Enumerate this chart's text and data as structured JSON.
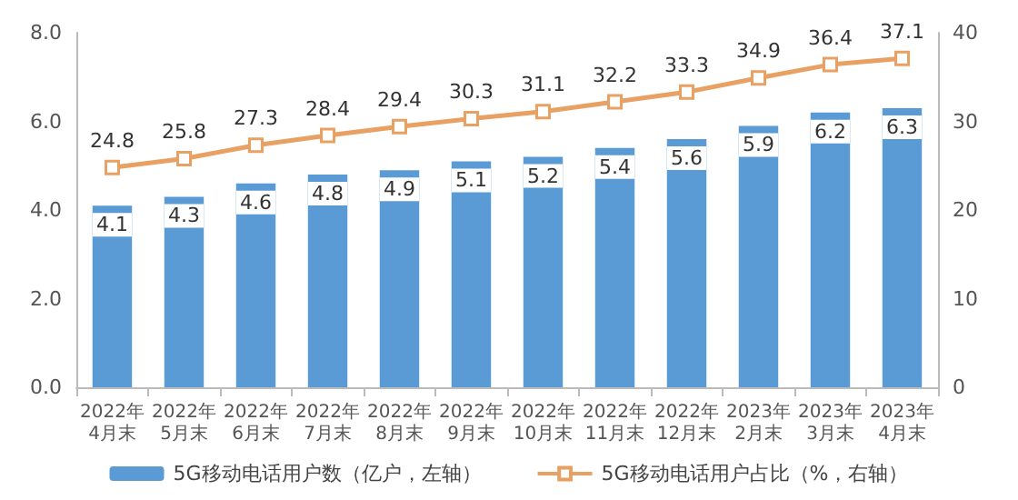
{
  "chart_data": {
    "type": "bar",
    "categories": [
      "2022年\n4月末",
      "2022年\n5月末",
      "2022年\n6月末",
      "2022年\n7月末",
      "2022年\n8月末",
      "2022年\n9月末",
      "2022年\n10月末",
      "2022年\n11月末",
      "2022年\n12月末",
      "2023年\n2月末",
      "2023年\n3月末",
      "2023年\n4月末"
    ],
    "series": [
      {
        "name": "5G移动电话用户数（亿户，左轴）",
        "color": "#5b9bd5",
        "values": [
          4.1,
          4.3,
          4.6,
          4.8,
          4.9,
          5.1,
          5.2,
          5.4,
          5.6,
          5.9,
          6.2,
          6.3
        ]
      },
      {
        "name": "5G移动电话用户占比（%，右轴）",
        "type": "line",
        "axis": "y2",
        "color": "#e8a063",
        "marker": "square",
        "values": [
          24.8,
          25.8,
          27.3,
          28.4,
          29.4,
          30.3,
          31.1,
          32.2,
          33.3,
          34.9,
          36.4,
          37.1
        ]
      }
    ],
    "ylim": [
      0,
      8
    ],
    "yticks": [
      {
        "value": 0,
        "label": "0.0"
      },
      {
        "value": 2,
        "label": "2.0"
      },
      {
        "value": 4,
        "label": "4.0"
      },
      {
        "value": 6,
        "label": "6.0"
      },
      {
        "value": 8,
        "label": "8.0"
      }
    ],
    "y2lim": [
      0,
      40
    ],
    "y2ticks": [
      0,
      10,
      20,
      30,
      40
    ],
    "data_labels": true,
    "legend": "bottom",
    "grid": false
  }
}
